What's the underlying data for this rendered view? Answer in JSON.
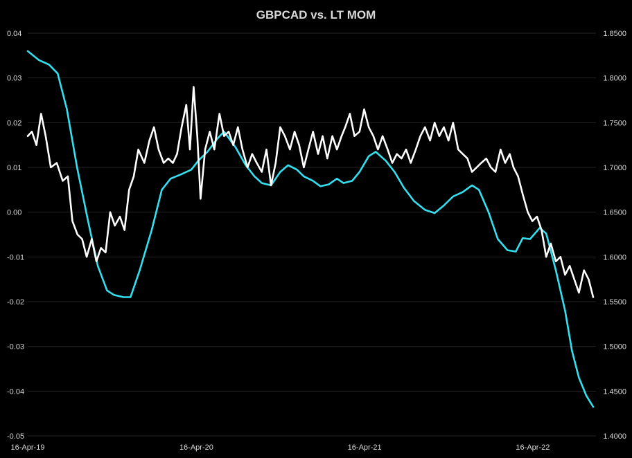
{
  "chart_data": {
    "type": "line",
    "title": "GBPCAD vs. LT MOM",
    "grid": true,
    "legend": "none",
    "x_ticks": [
      "16-Apr-19",
      "16-Apr-20",
      "16-Apr-21",
      "16-Apr-22"
    ],
    "x_range": [
      "2019-04-16",
      "2022-08-31"
    ],
    "y_left": {
      "min": -0.05,
      "max": 0.04,
      "step": 0.01,
      "tick_labels": [
        "0.04",
        "0.03",
        "0.02",
        "0.01",
        "0.00",
        "-0.01",
        "-0.02",
        "-0.03",
        "-0.04",
        "-0.05"
      ]
    },
    "y_right": {
      "min": 1.4,
      "max": 1.85,
      "step": 0.05,
      "tick_labels": [
        "1.8500",
        "1.8000",
        "1.7500",
        "1.7000",
        "1.6500",
        "1.6000",
        "1.5500",
        "1.5000",
        "1.4500",
        "1.4000"
      ]
    },
    "series": [
      {
        "axis": "left",
        "color": "#33e0f0",
        "points": [
          [
            "2019-04-16",
            0.036
          ],
          [
            "2019-05-10",
            0.034
          ],
          [
            "2019-06-01",
            0.033
          ],
          [
            "2019-06-20",
            0.031
          ],
          [
            "2019-07-10",
            0.023
          ],
          [
            "2019-08-01",
            0.01
          ],
          [
            "2019-08-25",
            -0.002
          ],
          [
            "2019-09-15",
            -0.012
          ],
          [
            "2019-10-05",
            -0.0175
          ],
          [
            "2019-10-20",
            -0.0185
          ],
          [
            "2019-11-10",
            -0.019
          ],
          [
            "2019-11-25",
            -0.019
          ],
          [
            "2019-12-15",
            -0.013
          ],
          [
            "2020-01-10",
            -0.004
          ],
          [
            "2020-02-01",
            0.005
          ],
          [
            "2020-02-20",
            0.0075
          ],
          [
            "2020-03-15",
            0.0085
          ],
          [
            "2020-04-05",
            0.0095
          ],
          [
            "2020-04-20",
            0.0115
          ],
          [
            "2020-05-10",
            0.0135
          ],
          [
            "2020-06-01",
            0.0165
          ],
          [
            "2020-06-15",
            0.018
          ],
          [
            "2020-07-10",
            0.0145
          ],
          [
            "2020-08-01",
            0.0105
          ],
          [
            "2020-08-20",
            0.008
          ],
          [
            "2020-09-05",
            0.0065
          ],
          [
            "2020-09-25",
            0.006
          ],
          [
            "2020-10-15",
            0.009
          ],
          [
            "2020-11-01",
            0.0105
          ],
          [
            "2020-11-20",
            0.0095
          ],
          [
            "2020-12-05",
            0.008
          ],
          [
            "2020-12-25",
            0.007
          ],
          [
            "2021-01-10",
            0.0058
          ],
          [
            "2021-01-28",
            0.0062
          ],
          [
            "2021-02-15",
            0.0075
          ],
          [
            "2021-03-01",
            0.0065
          ],
          [
            "2021-03-20",
            0.007
          ],
          [
            "2021-04-05",
            0.009
          ],
          [
            "2021-04-25",
            0.0125
          ],
          [
            "2021-05-10",
            0.0135
          ],
          [
            "2021-06-01",
            0.0115
          ],
          [
            "2021-06-20",
            0.009
          ],
          [
            "2021-07-10",
            0.0055
          ],
          [
            "2021-08-01",
            0.0025
          ],
          [
            "2021-08-25",
            0.0005
          ],
          [
            "2021-09-15",
            -0.0002
          ],
          [
            "2021-10-05",
            0.0015
          ],
          [
            "2021-10-25",
            0.0035
          ],
          [
            "2021-11-15",
            0.0045
          ],
          [
            "2021-12-05",
            0.006
          ],
          [
            "2021-12-20",
            0.005
          ],
          [
            "2022-01-10",
            0.0
          ],
          [
            "2022-01-30",
            -0.006
          ],
          [
            "2022-02-20",
            -0.0085
          ],
          [
            "2022-03-10",
            -0.0088
          ],
          [
            "2022-03-25",
            -0.0058
          ],
          [
            "2022-04-10",
            -0.006
          ],
          [
            "2022-05-01",
            -0.0035
          ],
          [
            "2022-05-15",
            -0.0048
          ],
          [
            "2022-06-05",
            -0.013
          ],
          [
            "2022-06-25",
            -0.022
          ],
          [
            "2022-07-10",
            -0.031
          ],
          [
            "2022-07-25",
            -0.037
          ],
          [
            "2022-08-10",
            -0.041
          ],
          [
            "2022-08-25",
            -0.0435
          ]
        ]
      },
      {
        "axis": "right",
        "color": "#ffffff",
        "points": [
          [
            "2019-04-16",
            1.735
          ],
          [
            "2019-04-25",
            1.74
          ],
          [
            "2019-05-05",
            1.725
          ],
          [
            "2019-05-15",
            1.76
          ],
          [
            "2019-05-25",
            1.735
          ],
          [
            "2019-06-05",
            1.7
          ],
          [
            "2019-06-18",
            1.705
          ],
          [
            "2019-07-01",
            1.685
          ],
          [
            "2019-07-12",
            1.69
          ],
          [
            "2019-07-22",
            1.64
          ],
          [
            "2019-08-02",
            1.625
          ],
          [
            "2019-08-12",
            1.62
          ],
          [
            "2019-08-22",
            1.6
          ],
          [
            "2019-09-02",
            1.62
          ],
          [
            "2019-09-12",
            1.595
          ],
          [
            "2019-09-22",
            1.61
          ],
          [
            "2019-10-02",
            1.605
          ],
          [
            "2019-10-12",
            1.65
          ],
          [
            "2019-10-22",
            1.635
          ],
          [
            "2019-11-02",
            1.645
          ],
          [
            "2019-11-12",
            1.63
          ],
          [
            "2019-11-22",
            1.675
          ],
          [
            "2019-12-02",
            1.69
          ],
          [
            "2019-12-12",
            1.72
          ],
          [
            "2019-12-25",
            1.705
          ],
          [
            "2020-01-05",
            1.73
          ],
          [
            "2020-01-15",
            1.745
          ],
          [
            "2020-01-25",
            1.72
          ],
          [
            "2020-02-05",
            1.705
          ],
          [
            "2020-02-15",
            1.71
          ],
          [
            "2020-02-25",
            1.705
          ],
          [
            "2020-03-05",
            1.715
          ],
          [
            "2020-03-15",
            1.745
          ],
          [
            "2020-03-25",
            1.77
          ],
          [
            "2020-04-02",
            1.72
          ],
          [
            "2020-04-10",
            1.79
          ],
          [
            "2020-04-18",
            1.735
          ],
          [
            "2020-04-25",
            1.665
          ],
          [
            "2020-05-05",
            1.72
          ],
          [
            "2020-05-15",
            1.74
          ],
          [
            "2020-05-25",
            1.72
          ],
          [
            "2020-06-05",
            1.76
          ],
          [
            "2020-06-15",
            1.735
          ],
          [
            "2020-06-25",
            1.74
          ],
          [
            "2020-07-05",
            1.725
          ],
          [
            "2020-07-15",
            1.745
          ],
          [
            "2020-07-25",
            1.72
          ],
          [
            "2020-08-05",
            1.7
          ],
          [
            "2020-08-15",
            1.715
          ],
          [
            "2020-08-25",
            1.705
          ],
          [
            "2020-09-05",
            1.695
          ],
          [
            "2020-09-15",
            1.72
          ],
          [
            "2020-09-25",
            1.68
          ],
          [
            "2020-10-05",
            1.705
          ],
          [
            "2020-10-15",
            1.745
          ],
          [
            "2020-10-25",
            1.735
          ],
          [
            "2020-11-05",
            1.72
          ],
          [
            "2020-11-15",
            1.74
          ],
          [
            "2020-11-25",
            1.725
          ],
          [
            "2020-12-05",
            1.7
          ],
          [
            "2020-12-15",
            1.72
          ],
          [
            "2020-12-25",
            1.74
          ],
          [
            "2021-01-05",
            1.715
          ],
          [
            "2021-01-15",
            1.735
          ],
          [
            "2021-01-25",
            1.71
          ],
          [
            "2021-02-05",
            1.735
          ],
          [
            "2021-02-15",
            1.72
          ],
          [
            "2021-02-25",
            1.735
          ],
          [
            "2021-03-05",
            1.745
          ],
          [
            "2021-03-15",
            1.76
          ],
          [
            "2021-03-25",
            1.735
          ],
          [
            "2021-04-05",
            1.74
          ],
          [
            "2021-04-15",
            1.765
          ],
          [
            "2021-04-25",
            1.745
          ],
          [
            "2021-05-05",
            1.735
          ],
          [
            "2021-05-15",
            1.72
          ],
          [
            "2021-05-25",
            1.735
          ],
          [
            "2021-06-05",
            1.72
          ],
          [
            "2021-06-15",
            1.705
          ],
          [
            "2021-06-25",
            1.715
          ],
          [
            "2021-07-05",
            1.71
          ],
          [
            "2021-07-15",
            1.72
          ],
          [
            "2021-07-25",
            1.705
          ],
          [
            "2021-08-05",
            1.72
          ],
          [
            "2021-08-15",
            1.735
          ],
          [
            "2021-08-25",
            1.745
          ],
          [
            "2021-09-05",
            1.73
          ],
          [
            "2021-09-15",
            1.75
          ],
          [
            "2021-09-25",
            1.735
          ],
          [
            "2021-10-05",
            1.745
          ],
          [
            "2021-10-15",
            1.73
          ],
          [
            "2021-10-25",
            1.75
          ],
          [
            "2021-11-05",
            1.72
          ],
          [
            "2021-11-15",
            1.715
          ],
          [
            "2021-11-25",
            1.71
          ],
          [
            "2021-12-05",
            1.695
          ],
          [
            "2021-12-15",
            1.7
          ],
          [
            "2021-12-25",
            1.705
          ],
          [
            "2022-01-05",
            1.71
          ],
          [
            "2022-01-15",
            1.7
          ],
          [
            "2022-01-25",
            1.695
          ],
          [
            "2022-02-05",
            1.72
          ],
          [
            "2022-02-15",
            1.705
          ],
          [
            "2022-02-25",
            1.715
          ],
          [
            "2022-03-05",
            1.7
          ],
          [
            "2022-03-15",
            1.69
          ],
          [
            "2022-03-25",
            1.67
          ],
          [
            "2022-04-05",
            1.65
          ],
          [
            "2022-04-15",
            1.64
          ],
          [
            "2022-04-25",
            1.645
          ],
          [
            "2022-05-05",
            1.63
          ],
          [
            "2022-05-15",
            1.6
          ],
          [
            "2022-05-25",
            1.615
          ],
          [
            "2022-06-05",
            1.595
          ],
          [
            "2022-06-15",
            1.6
          ],
          [
            "2022-06-25",
            1.58
          ],
          [
            "2022-07-05",
            1.59
          ],
          [
            "2022-07-15",
            1.575
          ],
          [
            "2022-07-25",
            1.56
          ],
          [
            "2022-08-05",
            1.585
          ],
          [
            "2022-08-15",
            1.575
          ],
          [
            "2022-08-25",
            1.555
          ]
        ]
      }
    ]
  }
}
